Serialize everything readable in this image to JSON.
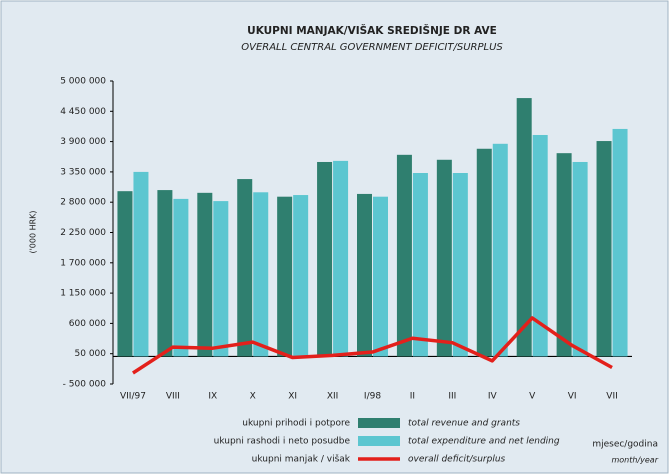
{
  "chart_data": {
    "type": "bar_line",
    "title": "UKUPNI MANJAK/VIŠAK SREDIŠNJE DR AVE",
    "subtitle": "OVERALL CENTRAL GOVERNMENT DEFICIT/SURPLUS",
    "y_label": "('000 HRK)",
    "x_label": "mjesec/godina",
    "x_label_en": "month/year",
    "categories": [
      "VII/97",
      "VIII",
      "IX",
      "X",
      "XI",
      "XII",
      "I/98",
      "II",
      "III",
      "IV",
      "V",
      "VI",
      "VII"
    ],
    "series": [
      {
        "name": "ukupni prihodi i potpore",
        "name_en": "total revenue and grants",
        "kind": "bar",
        "color": "#2f7f6f",
        "values": [
          3000000,
          3020000,
          2970000,
          3220000,
          2900000,
          3530000,
          2950000,
          3660000,
          3570000,
          3770000,
          4690000,
          3690000,
          3910000
        ]
      },
      {
        "name": "ukupni rashodi i neto posudbe",
        "name_en": "total expenditure and net lending",
        "kind": "bar",
        "color": "#5cc6d0",
        "values": [
          3350000,
          2860000,
          2820000,
          2980000,
          2930000,
          3550000,
          2900000,
          3330000,
          3330000,
          3860000,
          4020000,
          3530000,
          4130000
        ]
      },
      {
        "name": "ukupni manjak / višak",
        "name_en": "overall deficit/surplus",
        "kind": "line",
        "color": "#e3201b",
        "values": [
          -300000,
          170000,
          150000,
          260000,
          -20000,
          20000,
          80000,
          330000,
          250000,
          -80000,
          700000,
          200000,
          -200000
        ]
      }
    ],
    "ylim": [
      -500000,
      5000000
    ],
    "yticks": [
      {
        "value": -500000,
        "label": "- 500 000"
      },
      {
        "value": 50000,
        "label": "50 000"
      },
      {
        "value": 600000,
        "label": "600 000"
      },
      {
        "value": 1150000,
        "label": "1 150 000"
      },
      {
        "value": 1700000,
        "label": "1 700 000"
      },
      {
        "value": 2250000,
        "label": "2 250 000"
      },
      {
        "value": 2800000,
        "label": "2 800 000"
      },
      {
        "value": 3350000,
        "label": "3 350 000"
      },
      {
        "value": 3900000,
        "label": "3 900 000"
      },
      {
        "value": 4450000,
        "label": "4 450 000"
      },
      {
        "value": 5000000,
        "label": "5 000 000"
      }
    ],
    "grid": false
  }
}
